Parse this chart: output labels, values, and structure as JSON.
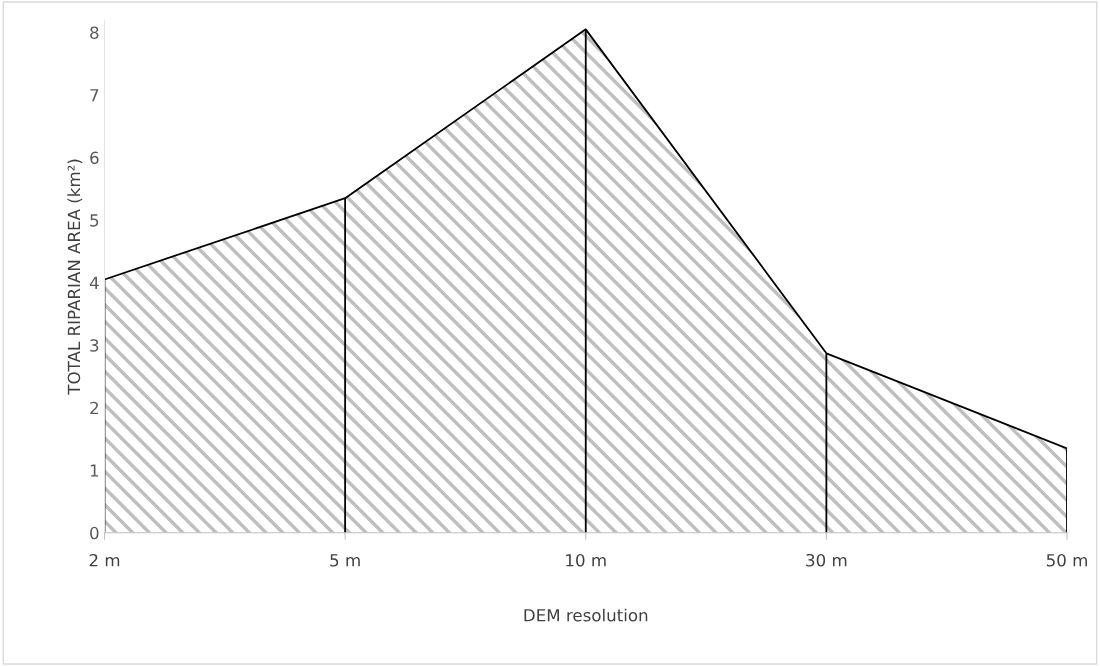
{
  "chart_data": {
    "type": "area",
    "xlabel": "DEM resolution",
    "ylabel": "TOTAL RIPARIAN AREA (km²)",
    "categories": [
      "2 m",
      "5 m",
      "10 m",
      "30 m",
      "50 m"
    ],
    "series": [
      {
        "color": "#bfbfbf",
        "values": [
          4.05,
          5.35,
          8.05,
          2.87,
          1.35
        ]
      }
    ],
    "ylim": [
      0,
      8.2
    ],
    "yticks": [
      0,
      1,
      2,
      3,
      4,
      5,
      6,
      7,
      8
    ],
    "grid": false,
    "legend": false
  }
}
